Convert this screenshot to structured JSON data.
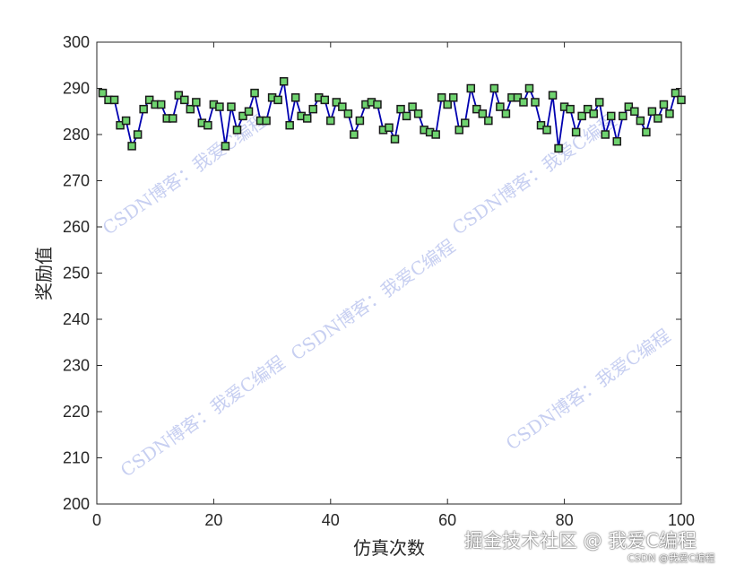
{
  "chart_data": {
    "type": "line",
    "title": "",
    "xlabel": "仿真次数",
    "ylabel": "奖励值",
    "xlim": [
      0,
      100
    ],
    "ylim": [
      200,
      300
    ],
    "xticks": [
      0,
      20,
      40,
      60,
      80,
      100
    ],
    "yticks": [
      200,
      210,
      220,
      230,
      240,
      250,
      260,
      270,
      280,
      290,
      300
    ],
    "grid": false,
    "line_color": "#0000b0",
    "marker": "square",
    "marker_face": "#6fd36f",
    "marker_edge": "#1a1a1a",
    "series": [
      {
        "x": [
          1,
          2,
          3,
          4,
          5,
          6,
          7,
          8,
          9,
          10,
          11,
          12,
          13,
          14,
          15,
          16,
          17,
          18,
          19,
          20,
          21,
          22,
          23,
          24,
          25,
          26,
          27,
          28,
          29,
          30,
          31,
          32,
          33,
          34,
          35,
          36,
          37,
          38,
          39,
          40,
          41,
          42,
          43,
          44,
          45,
          46,
          47,
          48,
          49,
          50,
          51,
          52,
          53,
          54,
          55,
          56,
          57,
          58,
          59,
          60,
          61,
          62,
          63,
          64,
          65,
          66,
          67,
          68,
          69,
          70,
          71,
          72,
          73,
          74,
          75,
          76,
          77,
          78,
          79,
          80,
          81,
          82,
          83,
          84,
          85,
          86,
          87,
          88,
          89,
          90,
          91,
          92,
          93,
          94,
          95,
          96,
          97,
          98,
          99,
          100
        ],
        "values": [
          289,
          287.5,
          287.5,
          282,
          283,
          277.5,
          280,
          285.5,
          287.5,
          286.5,
          286.5,
          283.5,
          283.5,
          288.5,
          287.5,
          285.5,
          287,
          282.5,
          282,
          286.5,
          286,
          277.5,
          286,
          281,
          284,
          285,
          289,
          283,
          283,
          288,
          287.5,
          291.5,
          282,
          288,
          284,
          283.5,
          285.5,
          288,
          287.5,
          283,
          287,
          286,
          284.5,
          280,
          283,
          286.5,
          287,
          286.5,
          281,
          281.5,
          279,
          285.5,
          284,
          286,
          284.5,
          281,
          280.5,
          280,
          288,
          286.5,
          288,
          281,
          282.5,
          290,
          285.5,
          284.5,
          283,
          290,
          286,
          284.5,
          288,
          288,
          287,
          290,
          287,
          282,
          281,
          288.5,
          277,
          286,
          285.5,
          280.5,
          284,
          285.5,
          284.5,
          287,
          280,
          284,
          278.5,
          284,
          286,
          285,
          283,
          280.5,
          285,
          283.5,
          286.5,
          284.5,
          289,
          287.5
        ]
      }
    ]
  },
  "watermarks": {
    "diagonal": "CSDN博客：我爱C编程",
    "corner_main": "掘金技术社区 @ 我爱C编程",
    "corner_sub": "CSDN @我爱C编程"
  }
}
